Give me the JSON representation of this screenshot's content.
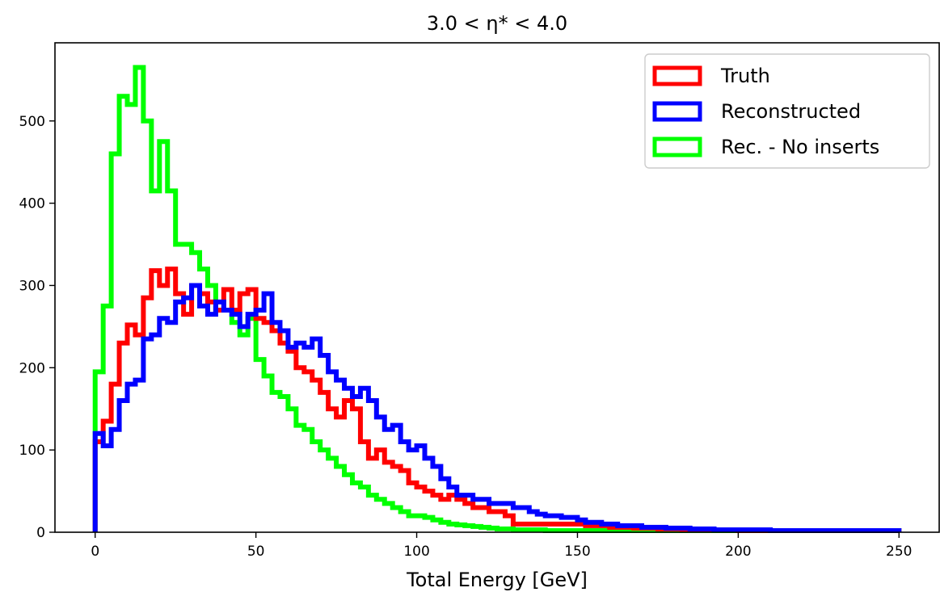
{
  "chart_data": {
    "type": "line",
    "style": "step-histogram",
    "title": "3.0 < η* < 4.0",
    "xlabel": "Total Energy [GeV]",
    "ylabel": "",
    "xlim": [
      -12.5,
      262.5
    ],
    "ylim": [
      0,
      595
    ],
    "bin_width": 2.5,
    "bin_start": 0,
    "xticks": [
      0,
      50,
      100,
      150,
      200,
      250
    ],
    "yticks": [
      0,
      100,
      200,
      300,
      400,
      500
    ],
    "grid": false,
    "legend_position": "top-right",
    "series": [
      {
        "name": "Truth",
        "color": "#ff0000",
        "values": [
          110,
          135,
          180,
          230,
          252,
          240,
          285,
          318,
          300,
          320,
          290,
          265,
          300,
          290,
          280,
          270,
          295,
          270,
          290,
          295,
          260,
          255,
          245,
          230,
          220,
          200,
          195,
          185,
          170,
          150,
          140,
          160,
          150,
          110,
          90,
          100,
          85,
          80,
          75,
          60,
          55,
          50,
          45,
          40,
          45,
          40,
          35,
          30,
          30,
          25,
          25,
          20,
          10,
          10,
          10,
          10,
          10,
          10,
          10,
          10,
          10,
          8,
          8,
          8,
          6,
          6,
          6,
          5,
          5,
          5,
          4,
          4,
          4,
          3,
          3,
          3,
          3,
          3,
          3,
          3,
          2,
          2,
          2,
          2,
          2,
          2,
          2,
          2,
          2,
          2,
          2,
          2,
          2,
          2,
          2,
          2,
          2,
          2,
          2,
          2
        ]
      },
      {
        "name": "Reconstructed",
        "color": "#0000ff",
        "values": [
          120,
          105,
          125,
          160,
          180,
          185,
          235,
          240,
          260,
          255,
          280,
          285,
          300,
          275,
          265,
          280,
          270,
          265,
          250,
          265,
          270,
          290,
          255,
          245,
          225,
          230,
          225,
          235,
          215,
          195,
          185,
          175,
          165,
          175,
          160,
          140,
          125,
          130,
          110,
          100,
          105,
          90,
          80,
          65,
          55,
          45,
          45,
          40,
          40,
          35,
          35,
          35,
          30,
          30,
          25,
          22,
          20,
          20,
          18,
          18,
          15,
          12,
          12,
          10,
          10,
          8,
          8,
          8,
          6,
          6,
          6,
          5,
          5,
          5,
          4,
          4,
          4,
          3,
          3,
          3,
          3,
          3,
          3,
          3,
          2,
          2,
          2,
          2,
          2,
          2,
          2,
          2,
          2,
          2,
          2,
          2,
          2,
          2,
          2,
          2
        ]
      },
      {
        "name": "Rec. - No inserts",
        "color": "#00ff00",
        "values": [
          195,
          275,
          460,
          530,
          520,
          565,
          500,
          415,
          475,
          415,
          350,
          350,
          340,
          320,
          300,
          270,
          270,
          255,
          240,
          260,
          210,
          190,
          170,
          165,
          150,
          130,
          125,
          110,
          100,
          90,
          80,
          70,
          60,
          55,
          45,
          40,
          35,
          30,
          25,
          20,
          20,
          18,
          15,
          12,
          10,
          9,
          8,
          7,
          6,
          5,
          4,
          4,
          3,
          3,
          3,
          3,
          2,
          2,
          2,
          2,
          2,
          2,
          2,
          2,
          2,
          2,
          2,
          2,
          2,
          2,
          2,
          2,
          2,
          2,
          2,
          2,
          2,
          2,
          2,
          2,
          2,
          2,
          2,
          2,
          2,
          2,
          2,
          2,
          2,
          2,
          2,
          2,
          2,
          2,
          2,
          2,
          2,
          2,
          2,
          2
        ]
      }
    ]
  }
}
